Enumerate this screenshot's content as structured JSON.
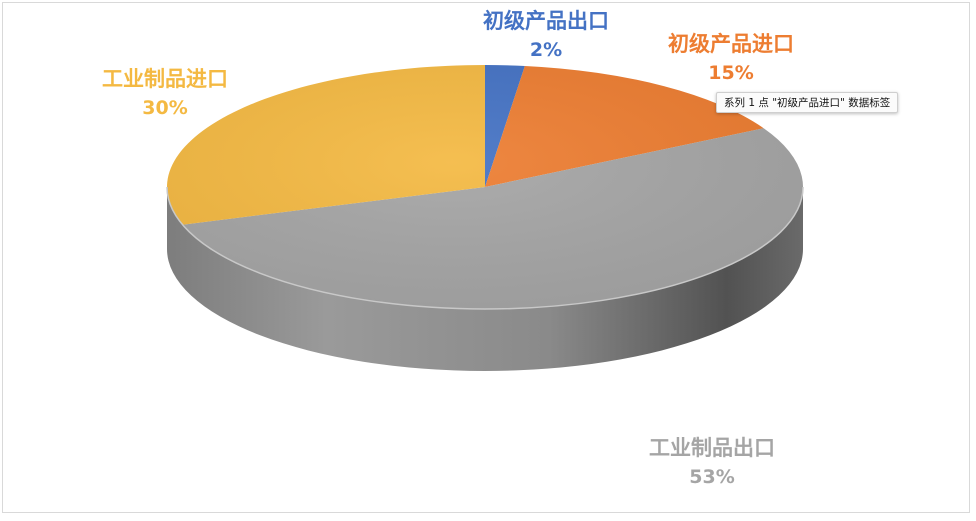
{
  "chart_data": {
    "type": "pie",
    "style": "3d",
    "slices": [
      {
        "name": "初级产品出口",
        "value": 2,
        "label": "2%",
        "color": "#4472C4"
      },
      {
        "name": "初级产品进口",
        "value": 15,
        "label": "15%",
        "color": "#ED7D31"
      },
      {
        "name": "工业制品出口",
        "value": 53,
        "label": "53%",
        "color": "#A5A5A5"
      },
      {
        "name": "工业制品进口",
        "value": 30,
        "label": "30%",
        "color": "#F4B942"
      }
    ]
  },
  "tooltip": {
    "text": "系列 1 点 \"初级产品进口\" 数据标签"
  }
}
